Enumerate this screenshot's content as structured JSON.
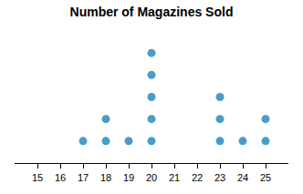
{
  "chart_data": {
    "type": "dot_plot",
    "title": "Number of Magazines Sold",
    "x": [
      17,
      18,
      19,
      20,
      23,
      24,
      25
    ],
    "values": [
      1,
      2,
      1,
      5,
      3,
      1,
      2
    ],
    "color": "#4a9cc8",
    "xlim": [
      14,
      26
    ],
    "xticks": [
      15,
      16,
      17,
      18,
      19,
      20,
      21,
      22,
      23,
      24,
      25
    ],
    "ylim": [
      0,
      6
    ],
    "grid": false,
    "tick_labels": "x"
  }
}
